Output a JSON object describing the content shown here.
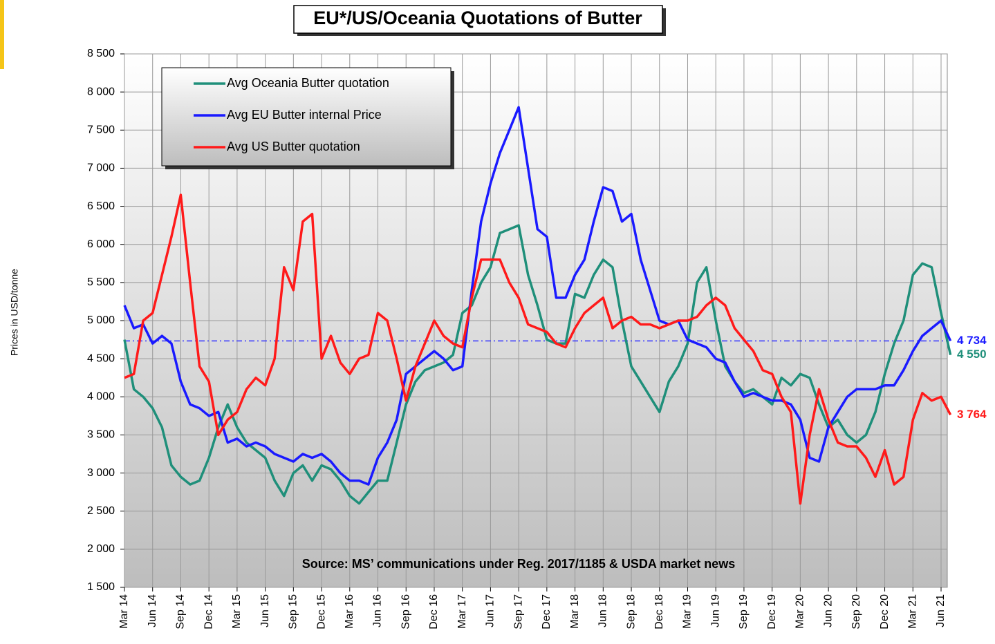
{
  "chart_data": {
    "type": "line",
    "title": "EU*/US/Oceania Quotations of Butter",
    "y_label": "Prices in USD/tonne",
    "source": "Source: MS’ communications under Reg. 2017/1185  & USDA market news",
    "categories": [
      "Mar 14",
      null,
      null,
      "Jun 14",
      null,
      null,
      "Sep 14",
      null,
      null,
      "Dec 14",
      null,
      null,
      "Mar 15",
      null,
      null,
      "Jun 15",
      null,
      null,
      "Sep 15",
      null,
      null,
      "Dec 15",
      null,
      null,
      "Mar 16",
      null,
      null,
      "Jun 16",
      null,
      null,
      "Sep 16",
      null,
      null,
      "Dec 16",
      null,
      null,
      "Mar 17",
      null,
      null,
      "Jun 17",
      null,
      null,
      "Sep 17",
      null,
      null,
      "Dec 17",
      null,
      null,
      "Mar 18",
      null,
      null,
      "Jun 18",
      null,
      null,
      "Sep 18",
      null,
      null,
      "Dec 18",
      null,
      null,
      "Mar 19",
      null,
      null,
      "Jun 19",
      null,
      null,
      "Sep 19",
      null,
      null,
      "Dec 19",
      null,
      null,
      "Mar 20",
      null,
      null,
      "Jun 20",
      null,
      null,
      "Sep 20",
      null,
      null,
      "Dec 20",
      null,
      null,
      "Mar 21",
      null,
      null,
      "Jun 21",
      null
    ],
    "series": [
      {
        "name": "Avg Oceania Butter quotation",
        "color": "#1f8f7a",
        "values": [
          4750,
          4100,
          4000,
          3850,
          3600,
          3100,
          2950,
          2850,
          2900,
          3200,
          3600,
          3900,
          3600,
          3400,
          3300,
          3200,
          2900,
          2700,
          3000,
          3100,
          2900,
          3100,
          3050,
          2900,
          2700,
          2600,
          2750,
          2900,
          2900,
          3400,
          3900,
          4200,
          4350,
          4400,
          4450,
          4550,
          5100,
          5200,
          5500,
          5700,
          6150,
          6200,
          6250,
          5600,
          5200,
          4750,
          4700,
          4700,
          5350,
          5300,
          5600,
          5800,
          5700,
          5000,
          4400,
          4200,
          4000,
          3800,
          4200,
          4400,
          4700,
          5500,
          5700,
          5000,
          4400,
          4200,
          4050,
          4100,
          4000,
          3900,
          4250,
          4150,
          4300,
          4250,
          3900,
          3600,
          3700,
          3500,
          3400,
          3500,
          3800,
          4300,
          4700,
          5000,
          5600,
          5750,
          5700,
          5100,
          4550
        ],
        "value_labels": [
          null,
          null,
          null,
          null,
          null,
          null,
          null,
          null,
          null,
          null,
          null,
          null,
          null,
          null,
          null,
          null,
          null,
          null,
          null,
          null,
          null,
          null,
          null,
          null,
          null,
          null,
          null,
          null,
          null,
          null,
          null,
          null,
          null,
          null,
          null,
          null,
          null,
          null,
          null,
          null,
          null,
          null,
          null,
          null,
          null,
          null,
          null,
          null,
          null,
          null,
          null,
          null,
          null,
          null,
          null,
          null,
          null,
          null,
          null,
          null,
          null,
          null,
          null,
          null,
          null,
          null,
          null,
          null,
          null,
          null,
          null,
          null,
          null,
          null,
          null,
          null,
          null,
          null,
          null,
          null,
          null,
          null,
          null,
          null,
          null,
          null,
          null,
          null,
          "4 550"
        ]
      },
      {
        "name": "Avg EU Butter internal Price",
        "color": "#1a1aff",
        "values": [
          5200,
          4900,
          4950,
          4700,
          4800,
          4700,
          4200,
          3900,
          3850,
          3750,
          3800,
          3400,
          3450,
          3350,
          3400,
          3350,
          3250,
          3200,
          3150,
          3250,
          3200,
          3250,
          3150,
          3000,
          2900,
          2900,
          2850,
          3200,
          3400,
          3700,
          4300,
          4400,
          4500,
          4600,
          4500,
          4350,
          4400,
          5400,
          6300,
          6800,
          7200,
          7500,
          7800,
          7000,
          6200,
          6100,
          5300,
          5300,
          5600,
          5800,
          6300,
          6750,
          6700,
          6300,
          6400,
          5800,
          5400,
          5000,
          4950,
          5000,
          4750,
          4700,
          4650,
          4500,
          4450,
          4200,
          4000,
          4050,
          4000,
          3950,
          3950,
          3900,
          3700,
          3200,
          3150,
          3600,
          3800,
          4000,
          4100,
          4100,
          4100,
          4150,
          4150,
          4350,
          4600,
          4800,
          4900,
          5000,
          4734
        ],
        "value_labels": [
          null,
          null,
          null,
          null,
          null,
          null,
          null,
          null,
          null,
          null,
          null,
          null,
          null,
          null,
          null,
          null,
          null,
          null,
          null,
          null,
          null,
          null,
          null,
          null,
          null,
          null,
          null,
          null,
          null,
          null,
          null,
          null,
          null,
          null,
          null,
          null,
          null,
          null,
          null,
          null,
          null,
          null,
          null,
          null,
          null,
          null,
          null,
          null,
          null,
          null,
          null,
          null,
          null,
          null,
          null,
          null,
          null,
          null,
          null,
          null,
          null,
          null,
          null,
          null,
          null,
          null,
          null,
          null,
          null,
          null,
          null,
          null,
          null,
          null,
          null,
          null,
          null,
          null,
          null,
          null,
          null,
          null,
          null,
          null,
          null,
          null,
          null,
          null,
          "4 734"
        ]
      },
      {
        "name": "Avg US Butter quotation",
        "color": "#ff1a1a",
        "values": [
          4250,
          4300,
          5000,
          5100,
          5600,
          6100,
          6650,
          5500,
          4400,
          4200,
          3500,
          3700,
          3800,
          4100,
          4250,
          4150,
          4500,
          5700,
          5400,
          6300,
          6400,
          4500,
          4800,
          4450,
          4300,
          4500,
          4550,
          5100,
          5000,
          4500,
          3950,
          4400,
          4700,
          5000,
          4800,
          4700,
          4650,
          5300,
          5800,
          5800,
          5800,
          5500,
          5300,
          4950,
          4900,
          4850,
          4700,
          4650,
          4900,
          5100,
          5200,
          5300,
          4900,
          5000,
          5050,
          4950,
          4950,
          4900,
          4950,
          5000,
          5000,
          5050,
          5200,
          5300,
          5200,
          4900,
          4750,
          4600,
          4350,
          4300,
          4000,
          3800,
          2600,
          3500,
          4100,
          3700,
          3400,
          3350,
          3350,
          3200,
          2950,
          3300,
          2850,
          2950,
          3700,
          4050,
          3950,
          4000,
          3764
        ],
        "value_labels": [
          null,
          null,
          null,
          null,
          null,
          null,
          null,
          null,
          null,
          null,
          null,
          null,
          null,
          null,
          null,
          null,
          null,
          null,
          null,
          null,
          null,
          null,
          null,
          null,
          null,
          null,
          null,
          null,
          null,
          null,
          null,
          null,
          null,
          null,
          null,
          null,
          null,
          null,
          null,
          null,
          null,
          null,
          null,
          null,
          null,
          null,
          null,
          null,
          null,
          null,
          null,
          null,
          null,
          null,
          null,
          null,
          null,
          null,
          null,
          null,
          null,
          null,
          null,
          null,
          null,
          null,
          null,
          null,
          null,
          null,
          null,
          null,
          null,
          null,
          null,
          null,
          null,
          null,
          null,
          null,
          null,
          null,
          null,
          null,
          null,
          null,
          null,
          null,
          "3 764"
        ]
      }
    ],
    "reference_line": {
      "value": 4734,
      "color": "#3333ff"
    },
    "ylim": [
      1500,
      8500
    ],
    "yticks": [
      {
        "value": 1500,
        "label": "1 500"
      },
      {
        "value": 2000,
        "label": "2 000"
      },
      {
        "value": 2500,
        "label": "2 500"
      },
      {
        "value": 3000,
        "label": "3 000"
      },
      {
        "value": 3500,
        "label": "3 500"
      },
      {
        "value": 4000,
        "label": "4 000"
      },
      {
        "value": 4500,
        "label": "4 500"
      },
      {
        "value": 5000,
        "label": "5 000"
      },
      {
        "value": 5500,
        "label": "5 500"
      },
      {
        "value": 6000,
        "label": "6 000"
      },
      {
        "value": 6500,
        "label": "6 500"
      },
      {
        "value": 7000,
        "label": "7 000"
      },
      {
        "value": 7500,
        "label": "7 500"
      },
      {
        "value": 8000,
        "label": "8 000"
      },
      {
        "value": 8500,
        "label": "8 500"
      }
    ],
    "grid": true,
    "legend": "upper left"
  }
}
